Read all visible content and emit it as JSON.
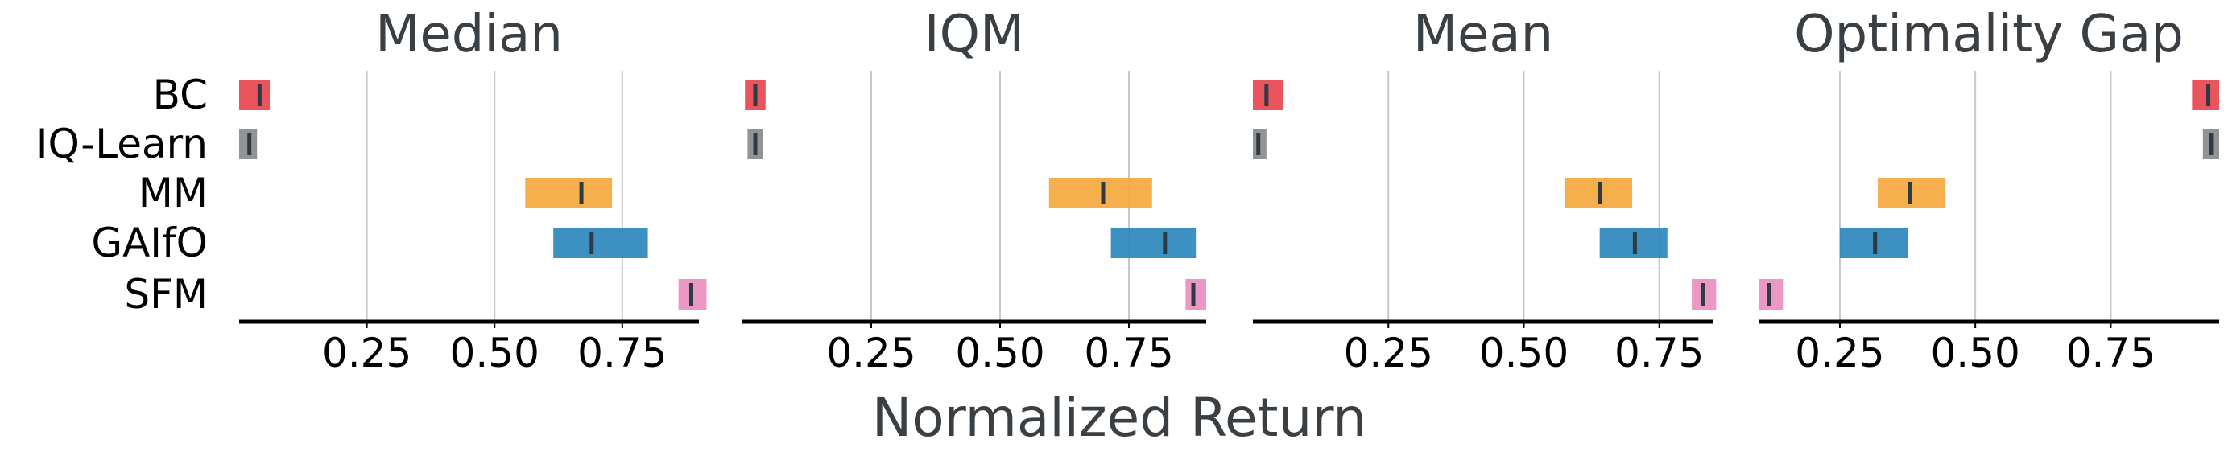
{
  "chart_data": {
    "type": "interval",
    "xlabel": "Normalized Return",
    "methods": [
      "BC",
      "IQ-Learn",
      "MM",
      "GAIfO",
      "SFM"
    ],
    "colors": {
      "BC": "#e8474f",
      "IQ-Learn": "#8a8a8a",
      "MM": "#f6a83e",
      "GAIfO": "#2b87bd",
      "SFM": "#ea8fbf"
    },
    "median_line_color": "#2f3b44",
    "xticks": [
      0.25,
      0.5,
      0.75
    ],
    "xtick_labels": [
      "0.25",
      "0.50",
      "0.75"
    ],
    "grid": true,
    "panels": [
      {
        "title": "Median",
        "xlim": [
          0.0,
          0.9
        ],
        "intervals": [
          {
            "method": "BC",
            "low": 0.0,
            "high": 0.06,
            "point": 0.04
          },
          {
            "method": "IQ-Learn",
            "low": 0.0,
            "high": 0.035,
            "point": 0.02
          },
          {
            "method": "MM",
            "low": 0.56,
            "high": 0.73,
            "point": 0.67
          },
          {
            "method": "GAIfO",
            "low": 0.615,
            "high": 0.8,
            "point": 0.69
          },
          {
            "method": "SFM",
            "low": 0.86,
            "high": 0.915,
            "point": 0.885
          }
        ]
      },
      {
        "title": "IQM",
        "xlim": [
          0.0,
          0.9
        ],
        "intervals": [
          {
            "method": "BC",
            "low": 0.005,
            "high": 0.045,
            "point": 0.025
          },
          {
            "method": "IQ-Learn",
            "low": 0.01,
            "high": 0.04,
            "point": 0.025
          },
          {
            "method": "MM",
            "low": 0.595,
            "high": 0.795,
            "point": 0.7
          },
          {
            "method": "GAIfO",
            "low": 0.715,
            "high": 0.88,
            "point": 0.82
          },
          {
            "method": "SFM",
            "low": 0.86,
            "high": 0.9,
            "point": 0.875
          }
        ]
      },
      {
        "title": "Mean",
        "xlim": [
          0.0,
          0.85
        ],
        "intervals": [
          {
            "method": "BC",
            "low": 0.0,
            "high": 0.055,
            "point": 0.025
          },
          {
            "method": "IQ-Learn",
            "low": 0.0,
            "high": 0.025,
            "point": 0.01
          },
          {
            "method": "MM",
            "low": 0.575,
            "high": 0.7,
            "point": 0.64
          },
          {
            "method": "GAIfO",
            "low": 0.64,
            "high": 0.765,
            "point": 0.705
          },
          {
            "method": "SFM",
            "low": 0.81,
            "high": 0.855,
            "point": 0.83
          }
        ]
      },
      {
        "title": "Optimality Gap",
        "xlim": [
          0.1,
          0.95
        ],
        "intervals": [
          {
            "method": "BC",
            "low": 0.9,
            "high": 0.95,
            "point": 0.93
          },
          {
            "method": "IQ-Learn",
            "low": 0.92,
            "high": 0.95,
            "point": 0.935
          },
          {
            "method": "MM",
            "low": 0.32,
            "high": 0.445,
            "point": 0.38
          },
          {
            "method": "GAIfO",
            "low": 0.25,
            "high": 0.375,
            "point": 0.315
          },
          {
            "method": "SFM",
            "low": 0.1,
            "high": 0.145,
            "point": 0.12
          }
        ]
      }
    ]
  }
}
